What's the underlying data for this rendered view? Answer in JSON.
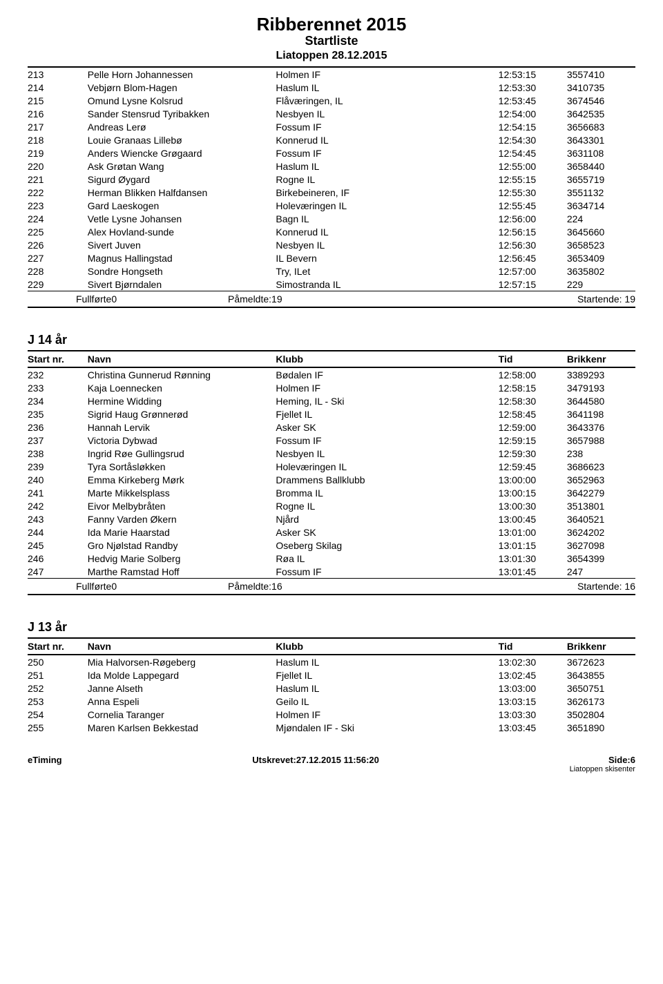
{
  "header": {
    "title": "Ribberennet 2015",
    "subtitle": "Startliste",
    "meta": "Liatoppen 28.12.2015"
  },
  "section1": {
    "rows": [
      {
        "nr": "213",
        "name": "Pelle Horn Johannessen",
        "club": "Holmen IF",
        "tid": "12:53:15",
        "brik": "3557410"
      },
      {
        "nr": "214",
        "name": "Vebjørn Blom-Hagen",
        "club": "Haslum IL",
        "tid": "12:53:30",
        "brik": "3410735"
      },
      {
        "nr": "215",
        "name": "Omund Lysne Kolsrud",
        "club": "Flåværingen, IL",
        "tid": "12:53:45",
        "brik": "3674546"
      },
      {
        "nr": "216",
        "name": "Sander Stensrud Tyribakken",
        "club": "Nesbyen IL",
        "tid": "12:54:00",
        "brik": "3642535"
      },
      {
        "nr": "217",
        "name": "Andreas Lerø",
        "club": "Fossum IF",
        "tid": "12:54:15",
        "brik": "3656683"
      },
      {
        "nr": "218",
        "name": "Louie Granaas Lillebø",
        "club": "Konnerud IL",
        "tid": "12:54:30",
        "brik": "3643301"
      },
      {
        "nr": "219",
        "name": "Anders Wiencke Grøgaard",
        "club": "Fossum IF",
        "tid": "12:54:45",
        "brik": "3631108"
      },
      {
        "nr": "220",
        "name": "Ask Grøtan Wang",
        "club": "Haslum IL",
        "tid": "12:55:00",
        "brik": "3658440"
      },
      {
        "nr": "221",
        "name": "Sigurd Øygard",
        "club": "Rogne IL",
        "tid": "12:55:15",
        "brik": "3655719"
      },
      {
        "nr": "222",
        "name": "Herman Blikken Halfdansen",
        "club": "Birkebeineren, IF",
        "tid": "12:55:30",
        "brik": "3551132"
      },
      {
        "nr": "223",
        "name": "Gard Laeskogen",
        "club": "Holeværingen IL",
        "tid": "12:55:45",
        "brik": "3634714"
      },
      {
        "nr": "224",
        "name": "Vetle Lysne Johansen",
        "club": "Bagn IL",
        "tid": "12:56:00",
        "brik": "224"
      },
      {
        "nr": "225",
        "name": "Alex Hovland-sunde",
        "club": "Konnerud IL",
        "tid": "12:56:15",
        "brik": "3645660"
      },
      {
        "nr": "226",
        "name": "Sivert Juven",
        "club": "Nesbyen IL",
        "tid": "12:56:30",
        "brik": "3658523"
      },
      {
        "nr": "227",
        "name": "Magnus Hallingstad",
        "club": "IL Bevern",
        "tid": "12:56:45",
        "brik": "3653409"
      },
      {
        "nr": "228",
        "name": "Sondre Hongseth",
        "club": "Try, ILet",
        "tid": "12:57:00",
        "brik": "3635802"
      },
      {
        "nr": "229",
        "name": "Sivert Bjørndalen",
        "club": "Simostranda IL",
        "tid": "12:57:15",
        "brik": "229"
      }
    ],
    "summary": {
      "fullforte": "Fullførte0",
      "pameldte": "Påmeldte:19",
      "startende": "Startende: 19"
    }
  },
  "section2": {
    "heading": "J 14 år",
    "cols": {
      "nr": "Start nr.",
      "name": "Navn",
      "club": "Klubb",
      "tid": "Tid",
      "brik": "Brikkenr"
    },
    "rows": [
      {
        "nr": "232",
        "name": "Christina Gunnerud Rønning",
        "club": "Bødalen IF",
        "tid": "12:58:00",
        "brik": "3389293"
      },
      {
        "nr": "233",
        "name": "Kaja Loennecken",
        "club": "Holmen IF",
        "tid": "12:58:15",
        "brik": "3479193"
      },
      {
        "nr": "234",
        "name": "Hermine Widding",
        "club": "Heming, IL - Ski",
        "tid": "12:58:30",
        "brik": "3644580"
      },
      {
        "nr": "235",
        "name": "Sigrid Haug Grønnerød",
        "club": "Fjellet IL",
        "tid": "12:58:45",
        "brik": "3641198"
      },
      {
        "nr": "236",
        "name": "Hannah Lervik",
        "club": "Asker SK",
        "tid": "12:59:00",
        "brik": "3643376"
      },
      {
        "nr": "237",
        "name": "Victoria Dybwad",
        "club": "Fossum IF",
        "tid": "12:59:15",
        "brik": "3657988"
      },
      {
        "nr": "238",
        "name": "Ingrid Røe Gullingsrud",
        "club": "Nesbyen IL",
        "tid": "12:59:30",
        "brik": "238"
      },
      {
        "nr": "239",
        "name": "Tyra Sortåsløkken",
        "club": "Holeværingen IL",
        "tid": "12:59:45",
        "brik": "3686623"
      },
      {
        "nr": "240",
        "name": "Emma Kirkeberg Mørk",
        "club": "Drammens Ballklubb",
        "tid": "13:00:00",
        "brik": "3652963"
      },
      {
        "nr": "241",
        "name": "Marte Mikkelsplass",
        "club": "Bromma IL",
        "tid": "13:00:15",
        "brik": "3642279"
      },
      {
        "nr": "242",
        "name": "Eivor Melbybråten",
        "club": "Rogne IL",
        "tid": "13:00:30",
        "brik": "3513801"
      },
      {
        "nr": "243",
        "name": "Fanny Varden Økern",
        "club": "Njård",
        "tid": "13:00:45",
        "brik": "3640521"
      },
      {
        "nr": "244",
        "name": "Ida Marie Haarstad",
        "club": "Asker SK",
        "tid": "13:01:00",
        "brik": "3624202"
      },
      {
        "nr": "245",
        "name": "Gro Njølstad Randby",
        "club": "Oseberg Skilag",
        "tid": "13:01:15",
        "brik": "3627098"
      },
      {
        "nr": "246",
        "name": "Hedvig Marie Solberg",
        "club": "Røa IL",
        "tid": "13:01:30",
        "brik": "3654399"
      },
      {
        "nr": "247",
        "name": "Marthe Ramstad Hoff",
        "club": "Fossum IF",
        "tid": "13:01:45",
        "brik": "247"
      }
    ],
    "summary": {
      "fullforte": "Fullførte0",
      "pameldte": "Påmeldte:16",
      "startende": "Startende: 16"
    }
  },
  "section3": {
    "heading": "J 13 år",
    "cols": {
      "nr": "Start nr.",
      "name": "Navn",
      "club": "Klubb",
      "tid": "Tid",
      "brik": "Brikkenr"
    },
    "rows": [
      {
        "nr": "250",
        "name": "Mia Halvorsen-Røgeberg",
        "club": "Haslum IL",
        "tid": "13:02:30",
        "brik": "3672623"
      },
      {
        "nr": "251",
        "name": "Ida Molde Lappegard",
        "club": "Fjellet IL",
        "tid": "13:02:45",
        "brik": "3643855"
      },
      {
        "nr": "252",
        "name": "Janne Alseth",
        "club": "Haslum IL",
        "tid": "13:03:00",
        "brik": "3650751"
      },
      {
        "nr": "253",
        "name": "Anna Espeli",
        "club": "Geilo IL",
        "tid": "13:03:15",
        "brik": "3626173"
      },
      {
        "nr": "254",
        "name": "Cornelia Taranger",
        "club": "Holmen IF",
        "tid": "13:03:30",
        "brik": "3502804"
      },
      {
        "nr": "255",
        "name": "Maren Karlsen Bekkestad",
        "club": "Mjøndalen IF - Ski",
        "tid": "13:03:45",
        "brik": "3651890"
      }
    ]
  },
  "footer": {
    "left": "eTiming",
    "center": "Utskrevet:27.12.2015 11:56:20",
    "right": "Side:6",
    "rightSub": "Liatoppen skisenter"
  }
}
